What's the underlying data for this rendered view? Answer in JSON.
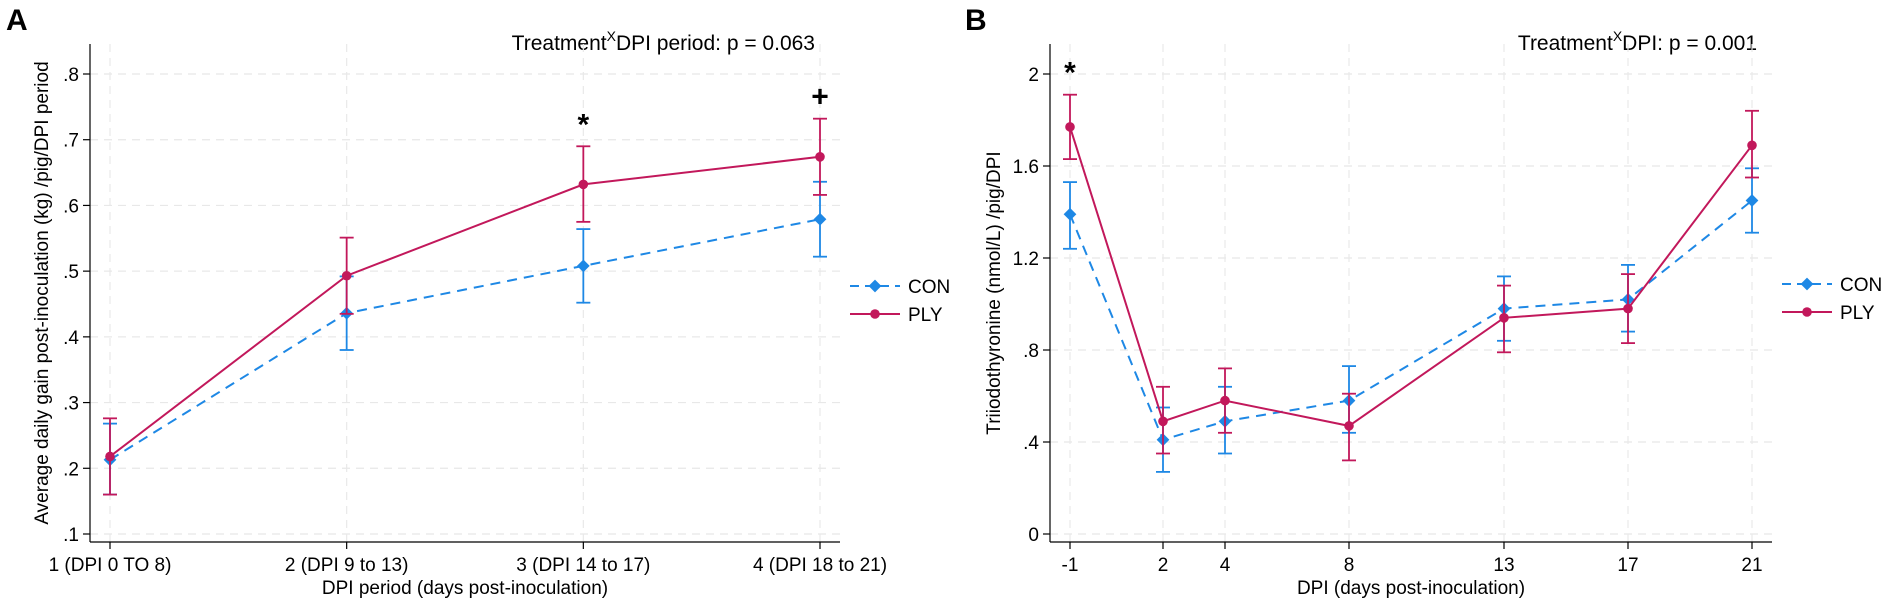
{
  "colors": {
    "con": "#1e88e5",
    "ply": "#c2185b"
  },
  "chart_data": [
    {
      "id": "A",
      "type": "line",
      "panel_label": "A",
      "title": "",
      "annotation": "Treatment×DPI period: p = 0.063",
      "annotation_base": "Treatment",
      "annotation_sup": "X",
      "annotation_rest": "DPI period: p = 0.063",
      "xlabel": "DPI period (days post-inoculation)",
      "ylabel": "Average daily gain post-inoculation (kg) /pig/DPI period",
      "categories": [
        "1 (DPI 0 TO 8)",
        "2 (DPI 9 to 13)",
        "3 (DPI 14 to 17)",
        "4 (DPI 18 to 21)"
      ],
      "x": [
        1,
        2,
        3,
        4
      ],
      "xlim": [
        1,
        4
      ],
      "ylim": [
        0.1,
        0.8
      ],
      "yticks": [
        0.1,
        0.2,
        0.3,
        0.4,
        0.5,
        0.6,
        0.7,
        0.8
      ],
      "ytick_labels": [
        ".1",
        ".2",
        ".3",
        ".4",
        ".5",
        ".6",
        ".7",
        ".8"
      ],
      "grid": true,
      "legend_position": "right",
      "series": [
        {
          "name": "CON",
          "key": "con",
          "dashed": true,
          "values": [
            0.213,
            0.436,
            0.508,
            0.579
          ],
          "lower": [
            0.16,
            0.38,
            0.452,
            0.522
          ],
          "upper": [
            0.268,
            0.492,
            0.564,
            0.636
          ]
        },
        {
          "name": "PLY",
          "key": "ply",
          "dashed": false,
          "values": [
            0.218,
            0.493,
            0.632,
            0.674
          ],
          "lower": [
            0.16,
            0.435,
            0.575,
            0.616
          ],
          "upper": [
            0.276,
            0.551,
            0.69,
            0.732
          ]
        }
      ],
      "significance": [
        {
          "x": 3,
          "symbol": "*"
        },
        {
          "x": 4,
          "symbol": "+"
        }
      ]
    },
    {
      "id": "B",
      "type": "line",
      "panel_label": "B",
      "title": "",
      "annotation": "Treatment×DPI: p = 0.001",
      "annotation_base": "Treatment",
      "annotation_sup": "X",
      "annotation_rest": "DPI: p = 0.001",
      "xlabel": "DPI (days post-inoculation)",
      "ylabel": "Triiodothyronine (nmol/L) /pig/DPI",
      "categories": [
        "-1",
        "2",
        "4",
        "8",
        "13",
        "17",
        "21"
      ],
      "x": [
        -1,
        2,
        4,
        8,
        13,
        17,
        21
      ],
      "xlim": [
        -1,
        21
      ],
      "ylim": [
        0,
        2
      ],
      "yticks": [
        0,
        0.4,
        0.8,
        1.2,
        1.6,
        2
      ],
      "ytick_labels": [
        "0",
        ".4",
        ".8",
        "1.2",
        "1.6",
        "2"
      ],
      "grid": true,
      "legend_position": "right",
      "series": [
        {
          "name": "CON",
          "key": "con",
          "dashed": true,
          "values": [
            1.39,
            0.41,
            0.49,
            0.58,
            0.98,
            1.02,
            1.45
          ],
          "lower": [
            1.24,
            0.27,
            0.35,
            0.44,
            0.84,
            0.88,
            1.31
          ],
          "upper": [
            1.53,
            0.55,
            0.64,
            0.73,
            1.12,
            1.17,
            1.59
          ]
        },
        {
          "name": "PLY",
          "key": "ply",
          "dashed": false,
          "values": [
            1.77,
            0.49,
            0.58,
            0.47,
            0.94,
            0.98,
            1.69
          ],
          "lower": [
            1.63,
            0.35,
            0.44,
            0.32,
            0.79,
            0.83,
            1.55
          ],
          "upper": [
            1.91,
            0.64,
            0.72,
            0.61,
            1.08,
            1.13,
            1.84
          ]
        }
      ],
      "significance": [
        {
          "x": -1,
          "symbol": "*"
        }
      ]
    }
  ]
}
